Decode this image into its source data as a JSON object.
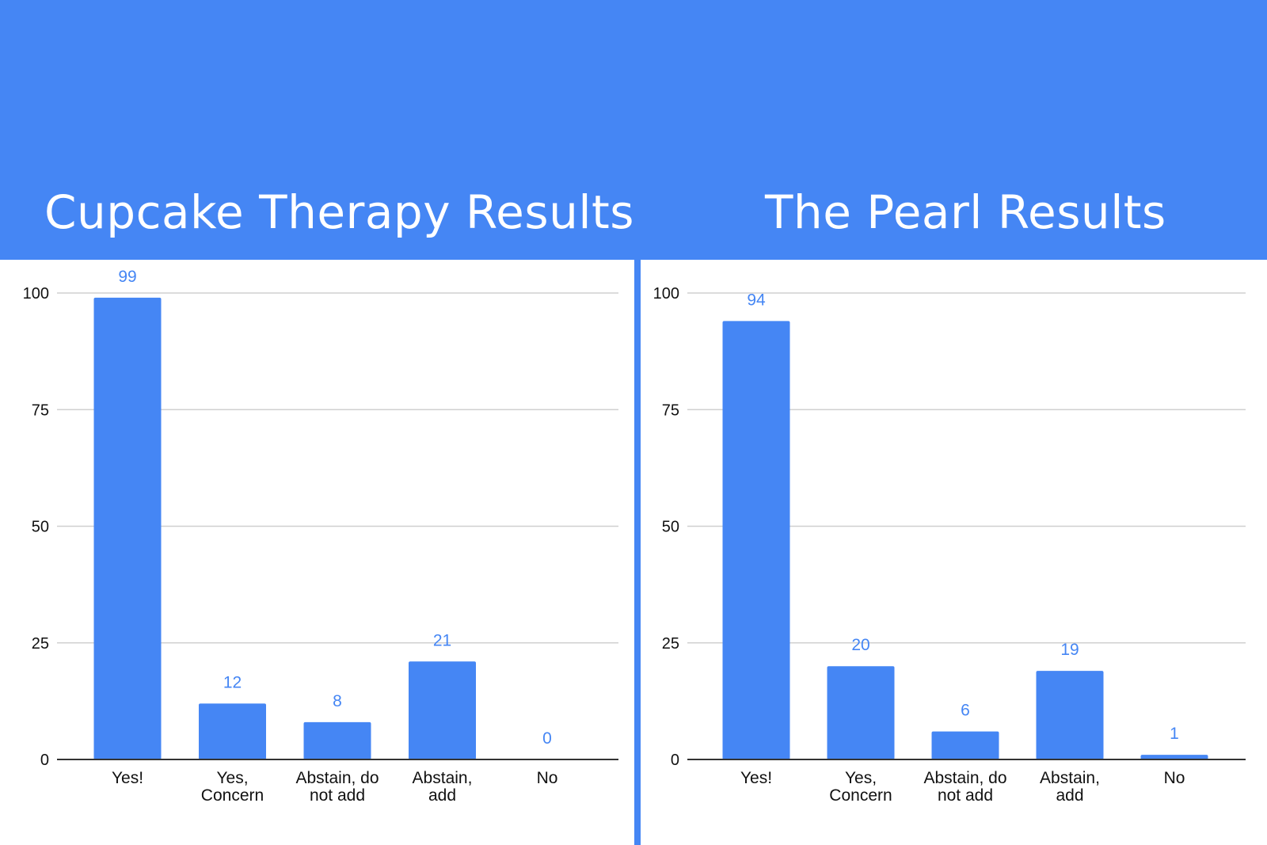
{
  "colors": {
    "accent": "#4586f4",
    "grid": "#d0d0d0",
    "axis": "#333333"
  },
  "chart_data": [
    {
      "type": "bar",
      "title": "Cupcake Therapy Results",
      "categories": [
        "Yes!",
        "Yes, Concern",
        "Abstain, do not add",
        "Abstain, add",
        "No"
      ],
      "category_lines": [
        [
          "Yes!"
        ],
        [
          "Yes,",
          "Concern"
        ],
        [
          "Abstain, do",
          "not add"
        ],
        [
          "Abstain,",
          "add"
        ],
        [
          "No"
        ]
      ],
      "values": [
        99,
        12,
        8,
        21,
        0
      ],
      "ylim": [
        0,
        100
      ],
      "yticks": [
        0,
        25,
        50,
        75,
        100
      ],
      "grid": true,
      "data_labels": true
    },
    {
      "type": "bar",
      "title": "The Pearl Results",
      "categories": [
        "Yes!",
        "Yes, Concern",
        "Abstain, do not add",
        "Abstain, add",
        "No"
      ],
      "category_lines": [
        [
          "Yes!"
        ],
        [
          "Yes,",
          "Concern"
        ],
        [
          "Abstain, do",
          "not add"
        ],
        [
          "Abstain,",
          "add"
        ],
        [
          "No"
        ]
      ],
      "values": [
        94,
        20,
        6,
        19,
        1
      ],
      "ylim": [
        0,
        100
      ],
      "yticks": [
        0,
        25,
        50,
        75,
        100
      ],
      "grid": true,
      "data_labels": true
    }
  ]
}
